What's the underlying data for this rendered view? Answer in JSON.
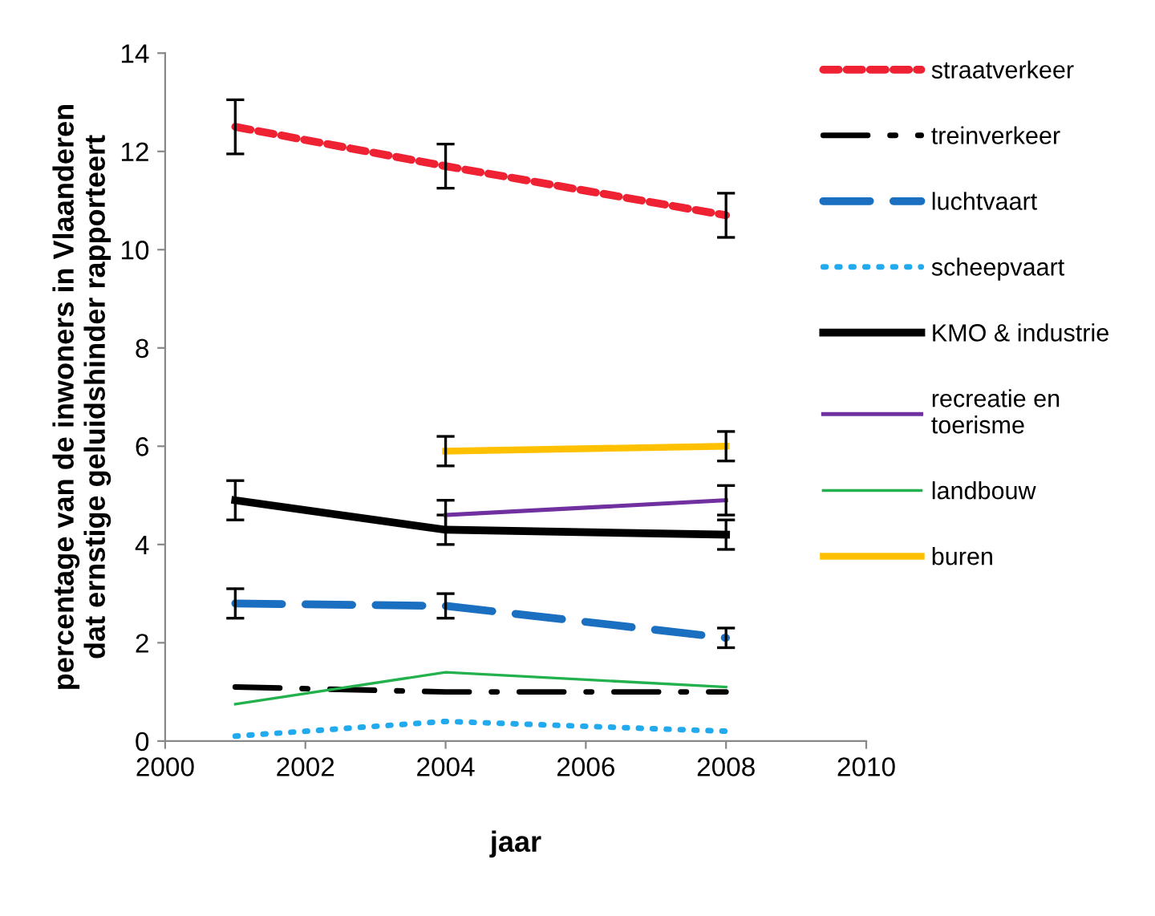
{
  "chart_data": {
    "type": "line",
    "xlabel": "jaar",
    "ylabel": "percentage van de inwoners in Vlaanderen\ndat ernstige geluidshinder rapporteert",
    "x": [
      2001,
      2004,
      2008
    ],
    "xlim": [
      2000,
      2010
    ],
    "xticks": [
      2000,
      2002,
      2004,
      2006,
      2008,
      2010
    ],
    "ylim": [
      0,
      14
    ],
    "yticks": [
      0,
      2,
      4,
      6,
      8,
      10,
      12,
      14
    ],
    "grid": false,
    "legend": "right",
    "marker": "none",
    "series": [
      {
        "name": "straatverkeer",
        "color": "#ee2233",
        "line_style": "dashed",
        "values": [
          12.5,
          11.7,
          10.7
        ],
        "errors": [
          0.55,
          0.45,
          0.45
        ]
      },
      {
        "name": "treinverkeer",
        "color": "#000000",
        "line_style": "dashdot",
        "values": [
          1.1,
          1.0,
          1.0
        ]
      },
      {
        "name": "luchtvaart",
        "color": "#1a6fc0",
        "line_style": "longdash",
        "values": [
          2.8,
          2.75,
          2.1
        ],
        "errors": [
          0.3,
          0.25,
          0.2
        ]
      },
      {
        "name": "scheepvaart",
        "color": "#22aaee",
        "line_style": "dotted",
        "values": [
          0.1,
          0.4,
          0.2
        ]
      },
      {
        "name": "KMO & industrie",
        "color": "#000000",
        "line_style": "solid",
        "values": [
          4.9,
          4.3,
          4.2
        ],
        "errors": [
          0.4,
          0.3,
          0.3
        ]
      },
      {
        "name": "recreatie en\ntoerisme",
        "color": "#7030a0",
        "line_style": "solid",
        "values": [
          null,
          4.6,
          4.9
        ],
        "errors": [
          null,
          0.3,
          0.3
        ]
      },
      {
        "name": "landbouw",
        "color": "#22b14c",
        "line_style": "solid",
        "values": [
          0.75,
          1.4,
          1.1
        ]
      },
      {
        "name": "buren",
        "color": "#ffc000",
        "line_style": "solid",
        "values": [
          null,
          5.9,
          6.0
        ],
        "errors": [
          null,
          0.3,
          0.3
        ]
      }
    ]
  }
}
